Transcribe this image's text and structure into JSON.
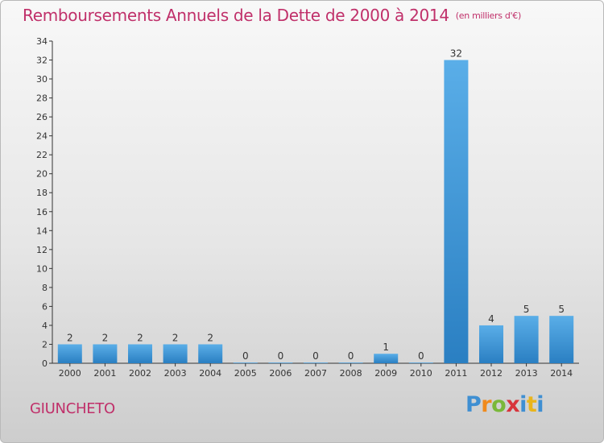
{
  "header": {
    "title": "Remboursements Annuels de la Dette de 2000 à 2014",
    "unit": "(en milliers d'€)"
  },
  "footer": {
    "commune": "GIUNCHETO",
    "logo": "Proxiti"
  },
  "colors": {
    "title": "#c0306a",
    "bar_top": "#5aaee8",
    "bar_bottom": "#2a7fc2"
  },
  "chart_data": {
    "type": "bar",
    "title": "Remboursements Annuels de la Dette de 2000 à 2014",
    "xlabel": "",
    "ylabel": "",
    "categories": [
      "2000",
      "2001",
      "2002",
      "2003",
      "2004",
      "2005",
      "2006",
      "2007",
      "2008",
      "2009",
      "2010",
      "2011",
      "2012",
      "2013",
      "2014"
    ],
    "values": [
      2,
      2,
      2,
      2,
      2,
      0,
      0,
      0,
      0,
      1,
      0,
      32,
      4,
      5,
      5
    ],
    "ylim": [
      0,
      34
    ],
    "yticks": [
      0,
      2,
      4,
      6,
      8,
      10,
      12,
      14,
      16,
      18,
      20,
      22,
      24,
      26,
      28,
      30,
      32,
      34
    ],
    "grid": false,
    "legend": "none"
  }
}
